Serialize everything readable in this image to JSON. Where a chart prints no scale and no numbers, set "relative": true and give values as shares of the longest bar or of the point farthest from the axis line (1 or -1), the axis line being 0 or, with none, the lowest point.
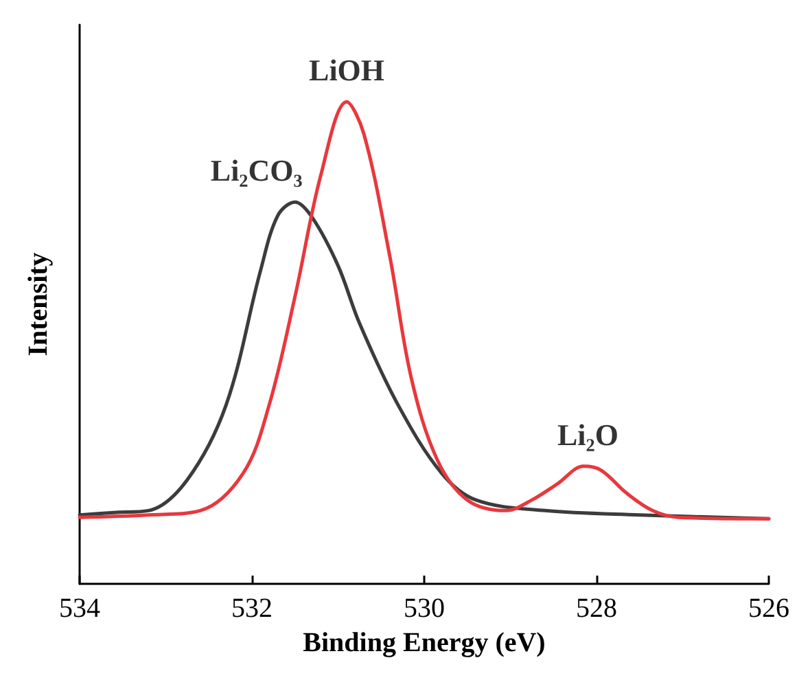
{
  "chart_data": {
    "type": "line",
    "xlabel": "Binding Energy (eV)",
    "ylabel": "Intensity",
    "relative": true,
    "xlim": [
      534,
      526
    ],
    "xticks": [
      534,
      532,
      530,
      528,
      526
    ],
    "grid": false,
    "marker": "none",
    "line_style": "solid",
    "series": [
      {
        "color": "#3c3c3c",
        "x": [
          534,
          533.6,
          533.2,
          532.75,
          532.3,
          531.9,
          531.7,
          531.5,
          531.3,
          531.0,
          530.75,
          530.3,
          529.8,
          529.4,
          528.6,
          527.5,
          526
        ],
        "values": [
          0.143,
          0.148,
          0.152,
          0.216,
          0.371,
          0.65,
          0.764,
          0.792,
          0.76,
          0.66,
          0.54,
          0.37,
          0.23,
          0.174,
          0.152,
          0.143,
          0.135
        ]
      },
      {
        "color": "#e8383d",
        "x": [
          534,
          533.2,
          532.6,
          532.1,
          531.8,
          531.5,
          531.2,
          530.9,
          530.7,
          530.4,
          530.15,
          529.85,
          529.5,
          529.05,
          528.75,
          528.45,
          528.15,
          527.95,
          527.65,
          527.35,
          527.05,
          526
        ],
        "values": [
          0.138,
          0.143,
          0.152,
          0.23,
          0.371,
          0.596,
          0.848,
          1,
          0.933,
          0.68,
          0.427,
          0.258,
          0.174,
          0.152,
          0.174,
          0.208,
          0.244,
          0.236,
          0.188,
          0.152,
          0.138,
          0.135
        ]
      }
    ],
    "annotations": [
      {
        "text": "Li₂CO₃",
        "x": 531.5,
        "y": 0.792
      },
      {
        "text": "LiOH",
        "x": 530.9,
        "y": 1
      },
      {
        "text": "Li₂O",
        "x": 528.1,
        "y": 0.244
      }
    ]
  }
}
